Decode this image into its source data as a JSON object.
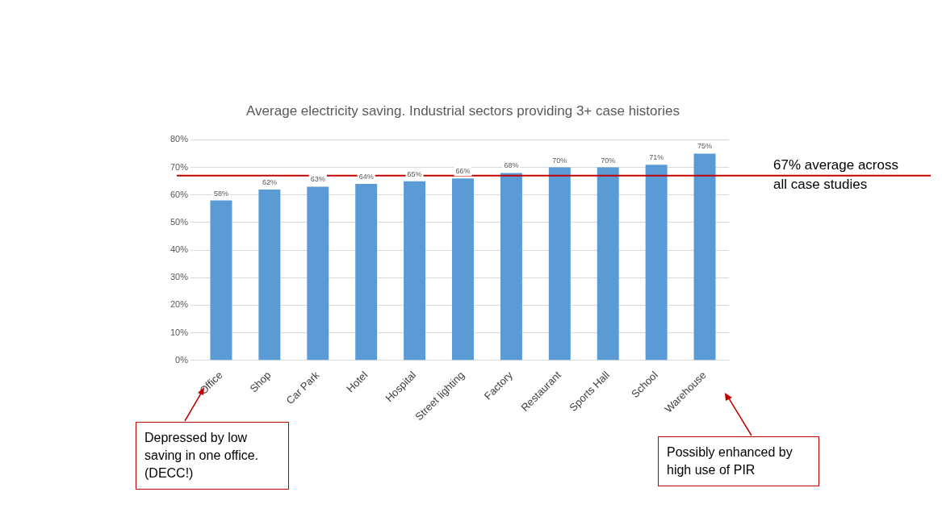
{
  "chart_data": {
    "type": "bar",
    "title": "Average electricity saving. Industrial sectors providing 3+ case histories",
    "categories": [
      "Office",
      "Shop",
      "Car Park",
      "Hotel",
      "Hospital",
      "Street lighting",
      "Factory",
      "Restaurant",
      "Sports Hall",
      "School",
      "Warehouse"
    ],
    "values": [
      58,
      62,
      63,
      64,
      65,
      66,
      68,
      70,
      70,
      71,
      75
    ],
    "color": "#5b9bd5",
    "ylim": [
      0,
      80
    ],
    "yticks": [
      {
        "value": 0,
        "label": "0%"
      },
      {
        "value": 10,
        "label": "10%"
      },
      {
        "value": 20,
        "label": "20%"
      },
      {
        "value": 30,
        "label": "30%"
      },
      {
        "value": 40,
        "label": "40%"
      },
      {
        "value": 50,
        "label": "50%"
      },
      {
        "value": 60,
        "label": "60%"
      },
      {
        "value": 70,
        "label": "70%"
      },
      {
        "value": 80,
        "label": "80%"
      }
    ],
    "grid": "y",
    "value_labels": [
      "58%",
      "62%",
      "63%",
      "64%",
      "65%",
      "66%",
      "68%",
      "70%",
      "70%",
      "71%",
      "75%"
    ],
    "ref_lines": [
      {
        "axis": "y",
        "value": 67,
        "label": "67% average across all case studies",
        "color": "#c00000"
      }
    ],
    "annotations": [
      "Depressed by low saving in one office. (DECC!)",
      "Possibly enhanced by high use of PIR"
    ]
  }
}
